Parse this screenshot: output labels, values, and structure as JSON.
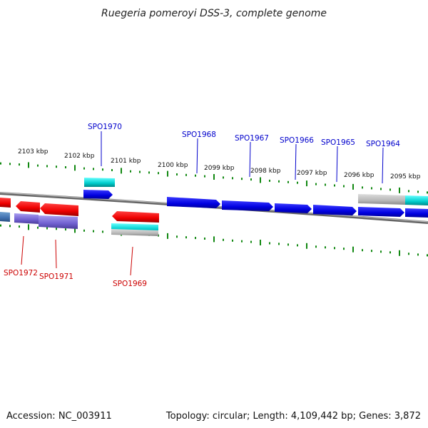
{
  "header": {
    "title": "Ruegeria pomeroyi DSS-3, complete genome"
  },
  "footer": {
    "accession": "Accession: NC_003911",
    "summary": "Topology: circular; Length: 4,109,442 bp; Genes: 3,872"
  },
  "ruler": {
    "labels": [
      "2103 kbp",
      "2102 kbp",
      "2101 kbp",
      "2100 kbp",
      "2099 kbp",
      "2098 kbp",
      "2097 kbp",
      "2096 kbp",
      "2095 kbp"
    ]
  },
  "genes": {
    "forward": [
      "SPO1970",
      "SPO1968",
      "SPO1967",
      "SPO1966",
      "SPO1965",
      "SPO1964"
    ],
    "reverse": [
      "SPO1972",
      "SPO1971",
      "SPO1969"
    ]
  },
  "colors": {
    "forward_gene": "#0000e6",
    "reverse_gene": "#ee0000",
    "forward_label": "#0000cc",
    "reverse_label": "#cc0000",
    "rna_feature": "#00c8c8",
    "misc_feature": "#7b68d8",
    "pseudo_feature": "#b0b0b0",
    "tick": "#118811",
    "backbone": "#888888"
  }
}
